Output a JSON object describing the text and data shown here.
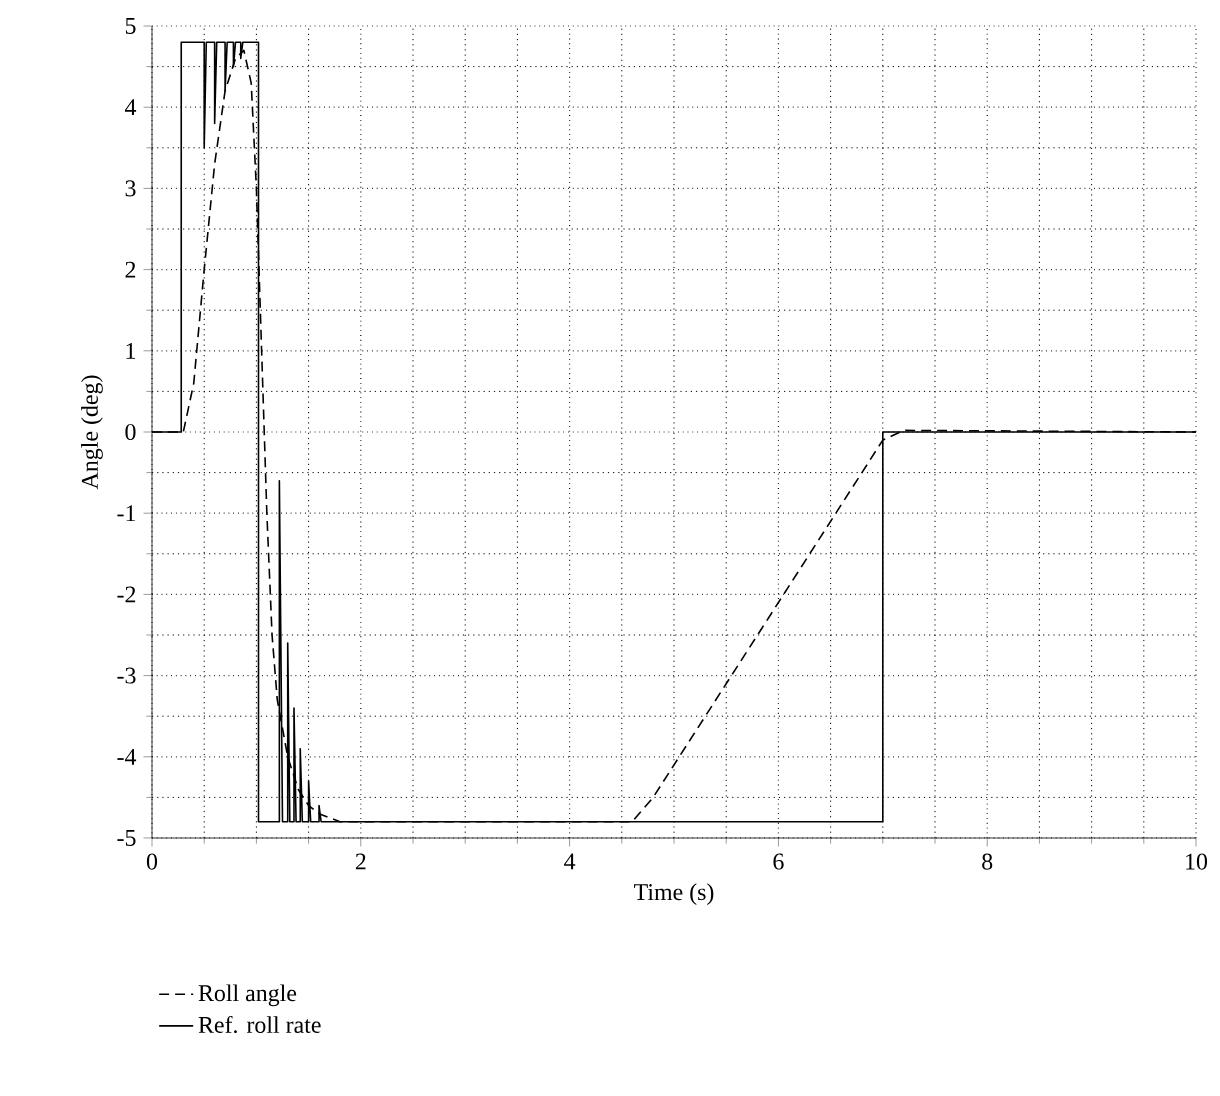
{
  "chart_data": {
    "type": "line",
    "xlabel": "Time (s)",
    "ylabel": "Angle (deg)",
    "xlim": [
      0,
      10
    ],
    "ylim": [
      -5,
      5
    ],
    "xticks": [
      0,
      2,
      4,
      6,
      8,
      10
    ],
    "yticks": [
      -5,
      -4,
      -3,
      -2,
      -1,
      0,
      1,
      2,
      3,
      4,
      5
    ],
    "grid": true,
    "legend": "bottom left",
    "series": [
      {
        "name": "Roll angle",
        "color": "#000000",
        "line_style": "dashed",
        "x": [
          0,
          0.3,
          0.4,
          0.5,
          0.6,
          0.7,
          0.8,
          0.88,
          0.95,
          1.0,
          1.05,
          1.1,
          1.15,
          1.2,
          1.3,
          1.4,
          1.5,
          1.6,
          1.8,
          4.6,
          4.8,
          7.0,
          7.2,
          10
        ],
        "values": [
          0,
          0,
          0.6,
          2.0,
          3.3,
          4.2,
          4.6,
          4.7,
          4.3,
          3.0,
          1.0,
          -1.0,
          -2.5,
          -3.3,
          -4.0,
          -4.4,
          -4.6,
          -4.7,
          -4.8,
          -4.8,
          -4.5,
          -0.1,
          0.02,
          0
        ]
      },
      {
        "name": "Ref. roll rate",
        "color": "#000000",
        "line_style": "solid",
        "x": [
          0,
          0.28,
          0.28,
          0.5,
          0.5,
          0.52,
          0.6,
          0.6,
          0.62,
          0.7,
          0.7,
          0.72,
          0.78,
          0.78,
          0.8,
          0.85,
          0.85,
          0.87,
          1.02,
          1.02,
          1.22,
          1.22,
          1.25,
          1.3,
          1.3,
          1.32,
          1.36,
          1.36,
          1.38,
          1.42,
          1.42,
          1.44,
          1.5,
          1.5,
          1.52,
          1.6,
          1.6,
          1.62,
          7.0,
          7.0,
          10
        ],
        "values": [
          0,
          0,
          4.8,
          4.8,
          3.5,
          4.8,
          4.8,
          3.8,
          4.8,
          4.8,
          4.2,
          4.8,
          4.8,
          4.5,
          4.8,
          4.8,
          4.6,
          4.8,
          4.8,
          -4.8,
          -4.8,
          -0.6,
          -4.8,
          -4.8,
          -2.6,
          -4.8,
          -4.8,
          -3.4,
          -4.8,
          -4.8,
          -3.9,
          -4.8,
          -4.8,
          -4.3,
          -4.8,
          -4.8,
          -4.6,
          -4.8,
          -4.8,
          0,
          0
        ]
      }
    ]
  }
}
